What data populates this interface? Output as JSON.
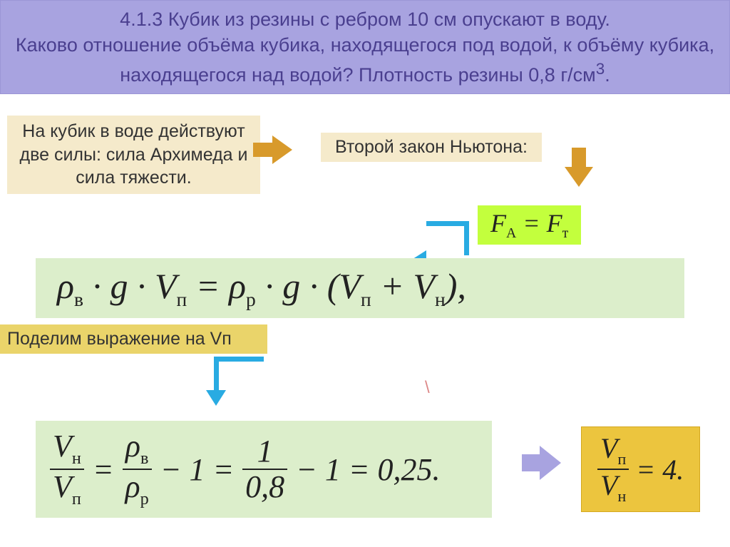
{
  "header": {
    "line1": "4.1.3 Кубик из резины с ребром 10 см опускают в воду.",
    "line2": "Каково отношение объёма кубика, находящегося под водой, к объёму кубика, находящегося над водой? Плотность резины 0,8 г/см",
    "sup": "3",
    "tail": "."
  },
  "box1": "На кубик в воде действуют две силы: сила Архимеда и сила тяжести.",
  "box2": "Второй закон Ньютона:",
  "eq1": {
    "lhs_sym": "F",
    "lhs_sub": "А",
    "eq": " = ",
    "rhs_sym": "F",
    "rhs_sub": "т"
  },
  "eq2": {
    "rho1": "ρ",
    "rho1_sub": "в",
    "dot": " · ",
    "g": "g",
    "V1": "V",
    "V1_sub": "п",
    "eq": " = ",
    "rho2": "ρ",
    "rho2_sub": "р",
    "lp": " (",
    "V2": "V",
    "V2_sub": "п",
    "plus": " + ",
    "V3": "V",
    "V3_sub": "н",
    "rp": "),"
  },
  "box3": "Поделим выражение на Vп",
  "eq3": {
    "Vn": "V",
    "Vn_sub": "н",
    "Vp": "V",
    "Vp_sub": "п",
    "eq": " = ",
    "rhov": "ρ",
    "rhov_sub": "в",
    "rhor": "ρ",
    "rhor_sub": "р",
    "minus1": " − 1 = ",
    "one": "1",
    "den": "0,8",
    "minus2": " − 1 = 0,25."
  },
  "eq4": {
    "Vp": "V",
    "Vp_sub": "п",
    "Vn": "V",
    "Vn_sub": "н",
    "eq": " = 4."
  },
  "colors": {
    "header_bg": "#a8a3e0",
    "box_bg": "#f5eacb",
    "yellow_bg": "#ead46a",
    "green_bg": "#c3ff3d",
    "lightgreen_bg": "#dceecb",
    "orange_bg": "#ecc53e",
    "arrow_orange": "#d89a2b",
    "arrow_blue": "#29abe2",
    "arrow_purple": "#a8a3e0"
  }
}
